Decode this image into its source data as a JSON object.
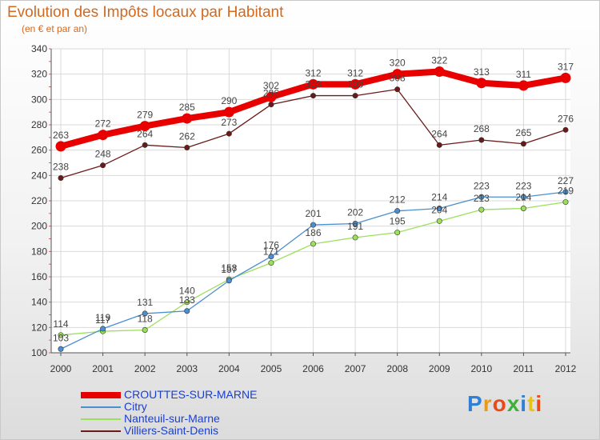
{
  "chart_data": {
    "type": "line",
    "title": "Evolution des Impôts locaux par Habitant",
    "subtitle": "(en € et par an)",
    "categories": [
      "2000",
      "2001",
      "2002",
      "2003",
      "2004",
      "2005",
      "2006",
      "2007",
      "2008",
      "2009",
      "2010",
      "2011",
      "2012"
    ],
    "ylim": [
      100,
      340
    ],
    "yticks": [
      100,
      120,
      140,
      160,
      180,
      200,
      220,
      240,
      260,
      280,
      300,
      320,
      340
    ],
    "grid": true,
    "series": [
      {
        "name": "CROUTTES-SUR-MARNE",
        "color": "#e80000",
        "values": [
          263,
          272,
          279,
          285,
          290,
          302,
          312,
          312,
          320,
          322,
          313,
          311,
          317
        ]
      },
      {
        "name": "Citry",
        "color": "#4a8fd0",
        "values": [
          103,
          119,
          131,
          133,
          157,
          176,
          201,
          202,
          212,
          214,
          223,
          223,
          227
        ]
      },
      {
        "name": "Nanteuil-sur-Marne",
        "color": "#9be05a",
        "values": [
          114,
          117,
          118,
          140,
          158,
          171,
          186,
          191,
          195,
          204,
          213,
          214,
          219
        ]
      },
      {
        "name": "Villiers-Saint-Denis",
        "color": "#6b1a1a",
        "values": [
          238,
          248,
          264,
          262,
          273,
          296,
          303,
          303,
          308,
          264,
          268,
          265,
          276
        ]
      }
    ]
  },
  "logo": {
    "text": "Proxiti",
    "colors": [
      "#2e7fd8",
      "#e89a1a",
      "#e84a1a",
      "#3bb03b",
      "#2e7fd8",
      "#e8c21a",
      "#e84a1a"
    ]
  }
}
